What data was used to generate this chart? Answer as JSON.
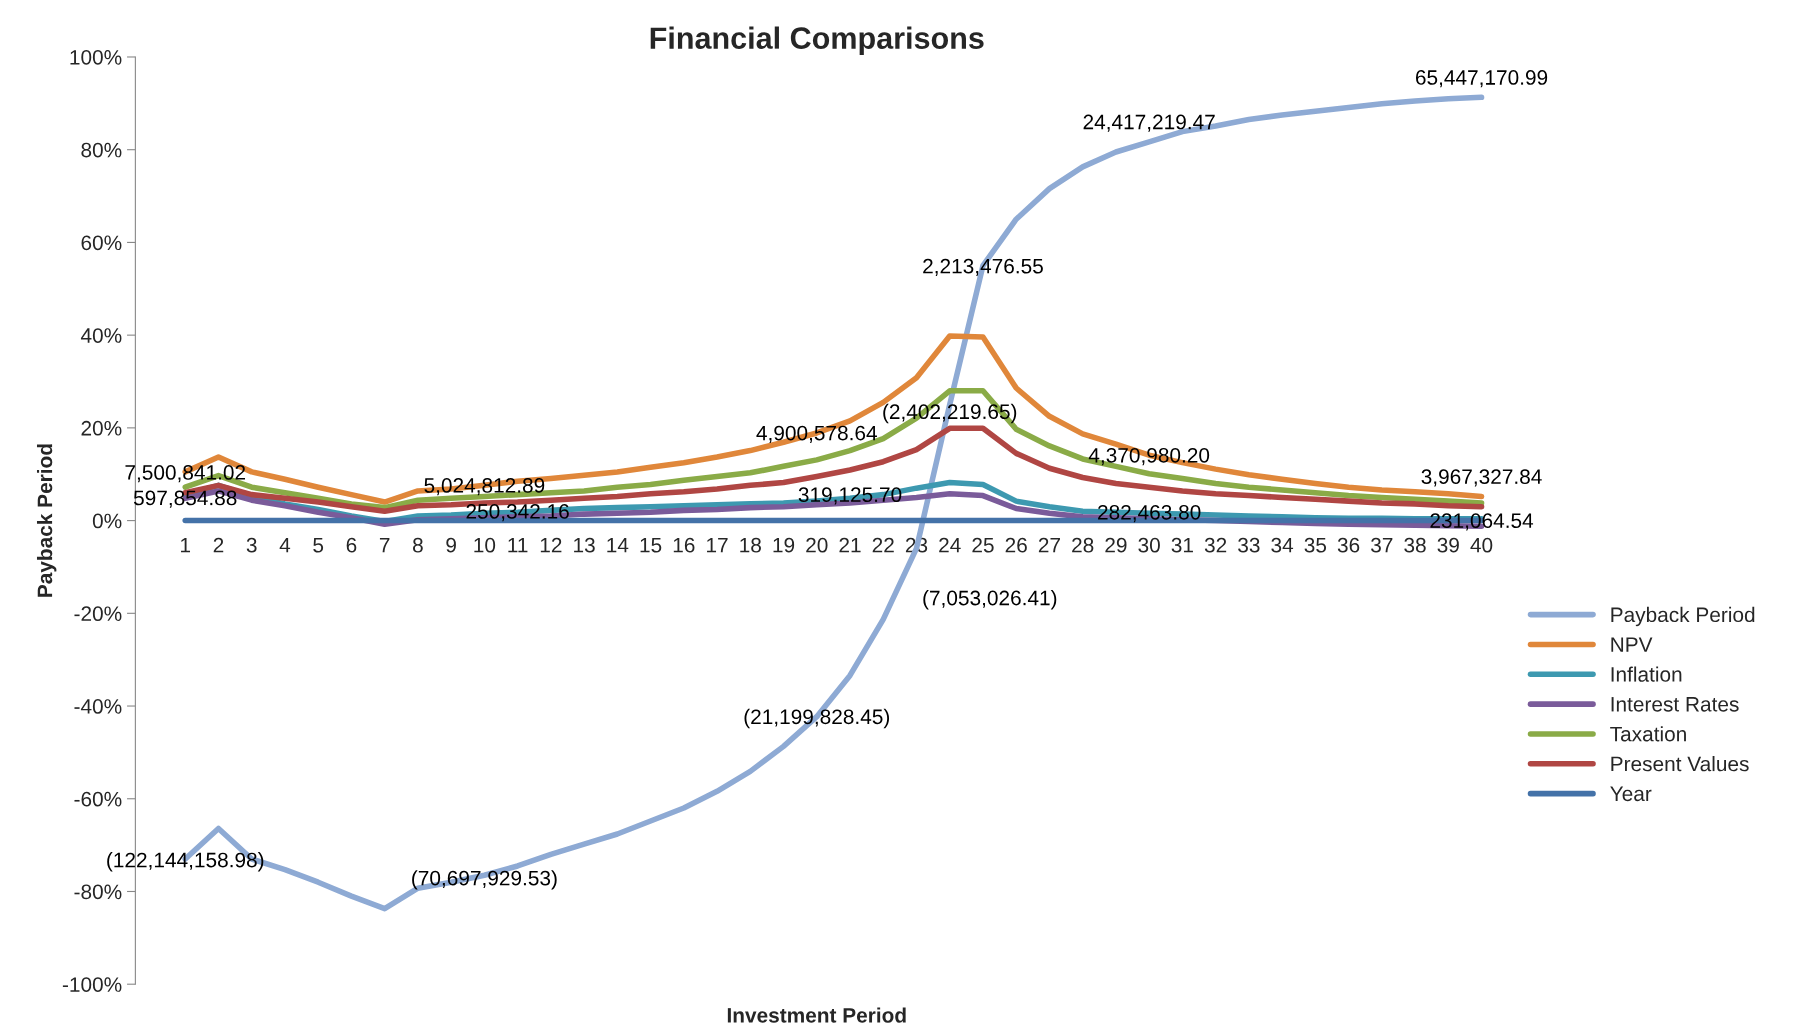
{
  "chart_data": {
    "type": "line",
    "title": "Financial Comparisons",
    "xlabel": "Investment Period",
    "ylabel": "Payback Period",
    "categories": [
      "1",
      "2",
      "3",
      "4",
      "5",
      "6",
      "7",
      "8",
      "9",
      "10",
      "11",
      "12",
      "13",
      "14",
      "15",
      "16",
      "17",
      "18",
      "19",
      "20",
      "21",
      "22",
      "23",
      "24",
      "25",
      "26",
      "27",
      "28",
      "29",
      "30",
      "31",
      "32",
      "33",
      "34",
      "35",
      "36",
      "37",
      "38",
      "39",
      "40"
    ],
    "ylim": [
      -100,
      100
    ],
    "yticks": [
      {
        "value": -100,
        "label": "-100%"
      },
      {
        "value": -80,
        "label": "-80%"
      },
      {
        "value": -60,
        "label": "-60%"
      },
      {
        "value": -40,
        "label": "-40%"
      },
      {
        "value": -20,
        "label": "-20%"
      },
      {
        "value": 0,
        "label": "0%"
      },
      {
        "value": 20,
        "label": "20%"
      },
      {
        "value": 40,
        "label": "40%"
      },
      {
        "value": 60,
        "label": "60%"
      },
      {
        "value": 80,
        "label": "80%"
      },
      {
        "value": 100,
        "label": "100%"
      }
    ],
    "grid": false,
    "legend": "right",
    "marker": "none",
    "line_style": "solid",
    "series": [
      {
        "name": "Payback Period",
        "color": "#8eaad4",
        "values": [
          -73,
          -66.4,
          -73,
          -75.3,
          -78,
          -81,
          -83.7,
          -79.3,
          -78,
          -76.5,
          -74.5,
          -72,
          -69.8,
          -67.6,
          -64.8,
          -62,
          -58.4,
          -54.1,
          -48.7,
          -42.3,
          -33.4,
          -21.3,
          -6,
          25,
          55,
          65,
          71.6,
          76.3,
          79.5,
          81.7,
          83.9,
          85.1,
          86.5,
          87.5,
          88.3,
          89.1,
          89.9,
          90.5,
          91,
          91.3
        ]
      },
      {
        "name": "NPV",
        "color": "#e0873a",
        "values": [
          10.5,
          13.7,
          10.5,
          8.9,
          7.2,
          5.6,
          4,
          6.4,
          6.8,
          7.6,
          8.5,
          9.1,
          9.8,
          10.5,
          11.5,
          12.5,
          13.7,
          15.1,
          16.9,
          18.9,
          21.5,
          25.5,
          30.8,
          39.8,
          39.6,
          28.6,
          22.5,
          18.7,
          16.5,
          14.1,
          12.5,
          11.1,
          9.9,
          8.9,
          8,
          7.2,
          6.6,
          6.2,
          5.8,
          5.2
        ]
      },
      {
        "name": "Inflation",
        "color": "#3d99b0",
        "values": [
          5.6,
          7.6,
          5.2,
          3.6,
          2.4,
          1,
          -0.2,
          1,
          1.2,
          1.6,
          1.8,
          2.2,
          2.6,
          2.8,
          3,
          3.2,
          3.4,
          3.6,
          3.8,
          4.2,
          4.8,
          5.6,
          7,
          8.2,
          7.8,
          4.2,
          3,
          2,
          1.8,
          1.6,
          1.4,
          1.2,
          1,
          0.8,
          0.6,
          0.5,
          0.5,
          0.4,
          0.4,
          0.4
        ]
      },
      {
        "name": "Interest Rates",
        "color": "#7a5b9a",
        "values": [
          4.8,
          6.4,
          4.4,
          3.2,
          1.8,
          0.6,
          -0.8,
          0.2,
          0.4,
          0.6,
          0.8,
          1,
          1.4,
          1.6,
          1.8,
          2.2,
          2.4,
          2.8,
          3,
          3.4,
          3.8,
          4.4,
          5,
          5.8,
          5.4,
          2.6,
          1.6,
          0.8,
          0.6,
          0.4,
          0.2,
          0,
          -0.2,
          -0.4,
          -0.6,
          -0.8,
          -0.9,
          -1,
          -1.1,
          -1.2
        ]
      },
      {
        "name": "Taxation",
        "color": "#8aab47",
        "values": [
          7.2,
          9.7,
          7.2,
          6,
          4.8,
          3.6,
          2.8,
          4.4,
          4.8,
          5.2,
          5.6,
          6,
          6.4,
          7.2,
          7.8,
          8.7,
          9.5,
          10.3,
          11.7,
          13.1,
          15.1,
          17.7,
          22.1,
          28,
          28,
          19.7,
          16.1,
          13.3,
          11.7,
          10.1,
          9.1,
          8,
          7.2,
          6.6,
          6,
          5.4,
          5,
          4.6,
          4.2,
          3.8
        ]
      },
      {
        "name": "Present Values",
        "color": "#b04643",
        "values": [
          6,
          7.6,
          5.6,
          4.8,
          4,
          3,
          2,
          3.2,
          3.4,
          3.8,
          4,
          4.4,
          4.8,
          5.2,
          5.8,
          6.2,
          6.8,
          7.6,
          8.2,
          9.5,
          10.9,
          12.7,
          15.3,
          19.9,
          19.9,
          14.5,
          11.3,
          9.3,
          8,
          7.2,
          6.4,
          5.8,
          5.4,
          5,
          4.6,
          4.2,
          3.8,
          3.6,
          3.2,
          3
        ]
      },
      {
        "name": "Year",
        "color": "#4472a8",
        "values": [
          0,
          0,
          0,
          0,
          0,
          0,
          0,
          0,
          0,
          0,
          0,
          0,
          0,
          0,
          0,
          0,
          0,
          0,
          0,
          0,
          0,
          0,
          0,
          0,
          0,
          0,
          0,
          0,
          0,
          0,
          0,
          0,
          0,
          0,
          0,
          0,
          0,
          0,
          0,
          0
        ]
      }
    ],
    "annotations": [
      {
        "text": "7,500,841.02",
        "x": "1",
        "y": 10
      },
      {
        "text": "597,854.88",
        "x": "1",
        "y": 4.5
      },
      {
        "text": "5,024,812.89",
        "x": "10",
        "y": 7.2
      },
      {
        "text": "250,342.16",
        "x": "11",
        "y": 1.6
      },
      {
        "text": "(122,144,158.98)",
        "x": "1",
        "y": -73.6
      },
      {
        "text": "(70,697,929.53)",
        "x": "10",
        "y": -77.5
      },
      {
        "text": "4,900,578.64",
        "x": "20",
        "y": 18.5
      },
      {
        "text": "319,125.70",
        "x": "21",
        "y": 5.2
      },
      {
        "text": "(2,402,219.65)",
        "x": "24",
        "y": 23.1
      },
      {
        "text": "2,213,476.55",
        "x": "25",
        "y": 54.5
      },
      {
        "text": "(7,053,026.41)",
        "x": "23",
        "y": -6
      },
      {
        "text": "(21,199,828.45)",
        "x": "20",
        "y": -42.7
      },
      {
        "text": "24,417,219.47",
        "x": "30",
        "y": 81.7
      },
      {
        "text": "65,447,170.99",
        "x": "40",
        "y": 91.3
      },
      {
        "text": "4,370,980.20",
        "x": "30",
        "y": 13.7
      },
      {
        "text": "282,463.80",
        "x": "30",
        "y": 1.4
      },
      {
        "text": "3,967,327.84",
        "x": "40",
        "y": 5.2
      },
      {
        "text": "231,064.54",
        "x": "40",
        "y": -0.4
      }
    ]
  }
}
